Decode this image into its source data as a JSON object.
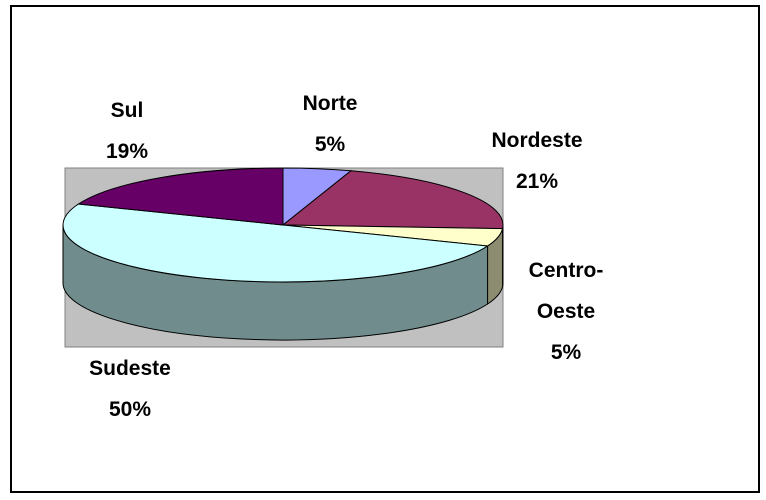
{
  "chart_data": {
    "type": "pie3d",
    "categories": [
      "Norte",
      "Nordeste",
      "Centro-Oeste",
      "Sudeste",
      "Sul"
    ],
    "values": [
      5,
      21,
      5,
      50,
      19
    ],
    "value_labels": [
      "5%",
      "21%",
      "5%",
      "50%",
      "19%"
    ],
    "colors": [
      "#9999ff",
      "#993366",
      "#ffffcc",
      "#ccffff",
      "#660066"
    ]
  }
}
